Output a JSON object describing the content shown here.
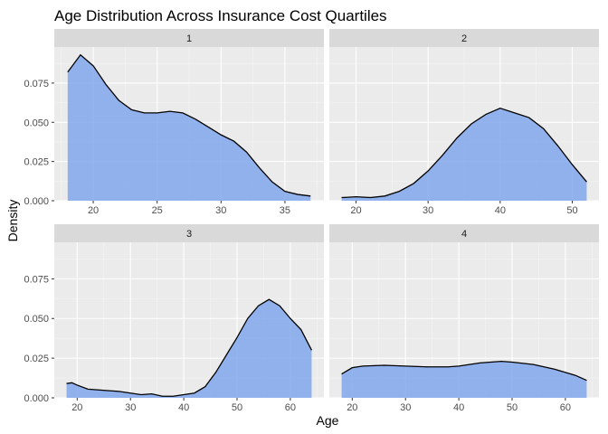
{
  "chart_data": {
    "type": "area",
    "title": "Age Distribution Across Insurance Cost Quartiles",
    "xlabel": "Age",
    "ylabel": "Density",
    "ylim": [
      0,
      0.098
    ],
    "y_ticks": [
      0,
      0.025,
      0.05,
      0.075
    ],
    "y_tick_labels": [
      "0.000",
      "0.025",
      "0.050",
      "0.075"
    ],
    "fill_color": "#7BA2EC",
    "panel_bg": "#EBEBEB",
    "strip_bg": "#D9D9D9",
    "line_color": "#000000",
    "grid": true,
    "panels": [
      {
        "label": "1",
        "xlim": [
          16.95,
          38.05
        ],
        "x_ticks": [
          20,
          25,
          30,
          35
        ],
        "x": [
          18,
          19,
          20,
          21,
          22,
          23,
          24,
          25,
          26,
          27,
          28,
          29,
          30,
          31,
          32,
          33,
          34,
          35,
          36,
          37
        ],
        "y": [
          0.082,
          0.093,
          0.086,
          0.074,
          0.064,
          0.058,
          0.056,
          0.056,
          0.057,
          0.056,
          0.052,
          0.047,
          0.042,
          0.038,
          0.031,
          0.021,
          0.012,
          0.006,
          0.004,
          0.003
        ]
      },
      {
        "label": "2",
        "xlim": [
          16.3,
          53.7
        ],
        "x_ticks": [
          20,
          30,
          40,
          50
        ],
        "x": [
          18,
          20,
          22,
          24,
          26,
          28,
          30,
          32,
          34,
          36,
          38,
          40,
          42,
          44,
          46,
          48,
          50,
          52
        ],
        "y": [
          0.002,
          0.0025,
          0.002,
          0.003,
          0.006,
          0.011,
          0.019,
          0.029,
          0.04,
          0.049,
          0.055,
          0.059,
          0.056,
          0.053,
          0.046,
          0.035,
          0.023,
          0.012
        ]
      },
      {
        "label": "3",
        "xlim": [
          15.7,
          66.3
        ],
        "x_ticks": [
          20,
          30,
          40,
          50,
          60
        ],
        "x": [
          18,
          19,
          20,
          22,
          24,
          26,
          28,
          30,
          32,
          34,
          36,
          38,
          40,
          42,
          44,
          46,
          48,
          50,
          52,
          54,
          56,
          58,
          60,
          62,
          64
        ],
        "y": [
          0.009,
          0.0095,
          0.008,
          0.0055,
          0.005,
          0.0045,
          0.004,
          0.003,
          0.002,
          0.0025,
          0.001,
          0.001,
          0.002,
          0.003,
          0.007,
          0.016,
          0.027,
          0.038,
          0.05,
          0.058,
          0.062,
          0.058,
          0.05,
          0.043,
          0.03
        ]
      },
      {
        "label": "4",
        "xlim": [
          15.7,
          66.3
        ],
        "x_ticks": [
          20,
          30,
          40,
          50,
          60
        ],
        "x": [
          18,
          20,
          22,
          26,
          30,
          34,
          38,
          40,
          42,
          44,
          46,
          48,
          50,
          54,
          58,
          62,
          64
        ],
        "y": [
          0.015,
          0.019,
          0.02,
          0.0205,
          0.02,
          0.0195,
          0.0195,
          0.02,
          0.021,
          0.022,
          0.0225,
          0.023,
          0.0225,
          0.021,
          0.018,
          0.014,
          0.011
        ]
      }
    ]
  }
}
